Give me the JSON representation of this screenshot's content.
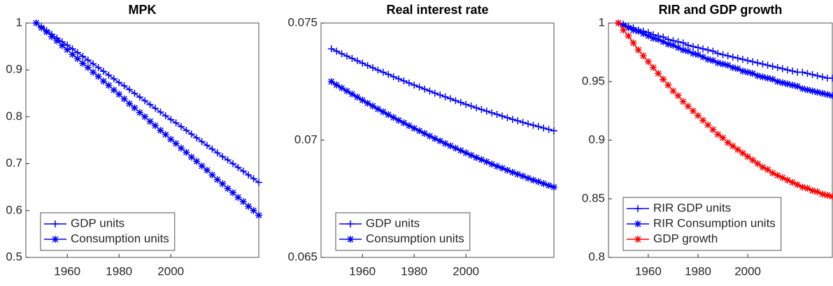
{
  "chart_data": [
    {
      "type": "line",
      "title": "MPK",
      "x": [
        1948,
        1950,
        1952,
        1954,
        1956,
        1958,
        1960,
        1962,
        1964,
        1966,
        1968,
        1970,
        1972,
        1974,
        1976,
        1978,
        1980,
        1982,
        1984,
        1986,
        1988,
        1990,
        1992,
        1994,
        1996,
        1998,
        2000,
        2002,
        2004,
        2006,
        2008,
        2010,
        2012,
        2014,
        2016,
        2018,
        2020,
        2022,
        2024,
        2026,
        2028,
        2030,
        2032,
        2034
      ],
      "xlim": [
        1944,
        2034
      ],
      "xticks": [
        1960,
        1980,
        2000
      ],
      "ylim": [
        0.5,
        1
      ],
      "yticks": [
        0.5,
        0.6,
        0.7,
        0.8,
        0.9,
        1
      ],
      "legend": "southwest",
      "series": [
        {
          "name": "GDP units",
          "color": "#0000ff",
          "marker": "+",
          "values": [
            1.0,
            0.992,
            0.984,
            0.976,
            0.968,
            0.96,
            0.953,
            0.945,
            0.937,
            0.929,
            0.921,
            0.913,
            0.905,
            0.897,
            0.889,
            0.881,
            0.873,
            0.866,
            0.858,
            0.85,
            0.842,
            0.834,
            0.826,
            0.818,
            0.81,
            0.802,
            0.794,
            0.787,
            0.779,
            0.771,
            0.763,
            0.755,
            0.747,
            0.739,
            0.731,
            0.723,
            0.715,
            0.708,
            0.7,
            0.692,
            0.684,
            0.676,
            0.668,
            0.66
          ]
        },
        {
          "name": "Consumption units",
          "color": "#0000ff",
          "marker": "*",
          "values": [
            1.0,
            0.99,
            0.981,
            0.971,
            0.962,
            0.952,
            0.943,
            0.933,
            0.924,
            0.914,
            0.905,
            0.895,
            0.886,
            0.876,
            0.867,
            0.857,
            0.848,
            0.838,
            0.828,
            0.819,
            0.809,
            0.8,
            0.79,
            0.781,
            0.771,
            0.762,
            0.752,
            0.743,
            0.733,
            0.724,
            0.714,
            0.705,
            0.695,
            0.686,
            0.676,
            0.666,
            0.657,
            0.647,
            0.638,
            0.628,
            0.619,
            0.609,
            0.6,
            0.59
          ]
        }
      ]
    },
    {
      "type": "line",
      "title": "Real interest rate",
      "x": [
        1948,
        1950,
        1952,
        1954,
        1956,
        1958,
        1960,
        1962,
        1964,
        1966,
        1968,
        1970,
        1972,
        1974,
        1976,
        1978,
        1980,
        1982,
        1984,
        1986,
        1988,
        1990,
        1992,
        1994,
        1996,
        1998,
        2000,
        2002,
        2004,
        2006,
        2008,
        2010,
        2012,
        2014,
        2016,
        2018,
        2020,
        2022,
        2024,
        2026,
        2028,
        2030,
        2032,
        2034
      ],
      "xlim": [
        1944,
        2034
      ],
      "xticks": [
        1960,
        1980,
        2000
      ],
      "ylim": [
        0.065,
        0.075
      ],
      "yticks": [
        0.065,
        0.07,
        0.075
      ],
      "legend": "southwest",
      "series": [
        {
          "name": "GDP units",
          "color": "#0000ff",
          "marker": "+",
          "values": [
            0.0739,
            0.0738,
            0.07369,
            0.07359,
            0.07349,
            0.07339,
            0.07329,
            0.07319,
            0.07309,
            0.07299,
            0.0729,
            0.07281,
            0.07271,
            0.07262,
            0.07253,
            0.07244,
            0.07235,
            0.07227,
            0.07218,
            0.0721,
            0.07201,
            0.07193,
            0.07185,
            0.07177,
            0.07169,
            0.07161,
            0.07153,
            0.07146,
            0.07138,
            0.07131,
            0.07124,
            0.07117,
            0.0711,
            0.07103,
            0.07096,
            0.07089,
            0.07083,
            0.07076,
            0.0707,
            0.07064,
            0.07058,
            0.07052,
            0.07046,
            0.0704
          ]
        },
        {
          "name": "Consumption units",
          "color": "#0000ff",
          "marker": "*",
          "values": [
            0.0725,
            0.07236,
            0.07223,
            0.0721,
            0.07197,
            0.07184,
            0.07171,
            0.07158,
            0.07146,
            0.07133,
            0.07121,
            0.07109,
            0.07097,
            0.07085,
            0.07074,
            0.07062,
            0.07051,
            0.0704,
            0.07029,
            0.07018,
            0.07007,
            0.06997,
            0.06986,
            0.06976,
            0.06966,
            0.06956,
            0.06946,
            0.06936,
            0.06926,
            0.06917,
            0.06908,
            0.06898,
            0.06889,
            0.06881,
            0.06872,
            0.06863,
            0.06855,
            0.06847,
            0.06838,
            0.0683,
            0.06823,
            0.06815,
            0.06807,
            0.068
          ]
        }
      ]
    },
    {
      "type": "line",
      "title": "RIR and GDP growth",
      "x": [
        1948,
        1950,
        1952,
        1954,
        1956,
        1958,
        1960,
        1962,
        1964,
        1966,
        1968,
        1970,
        1972,
        1974,
        1976,
        1978,
        1980,
        1982,
        1984,
        1986,
        1988,
        1990,
        1992,
        1994,
        1996,
        1998,
        2000,
        2002,
        2004,
        2006,
        2008,
        2010,
        2012,
        2014,
        2016,
        2018,
        2020,
        2022,
        2024,
        2026,
        2028,
        2030,
        2032,
        2034
      ],
      "xlim": [
        1944,
        2034
      ],
      "xticks": [
        1960,
        1980,
        2000
      ],
      "ylim": [
        0.8,
        1
      ],
      "yticks": [
        0.8,
        0.85,
        0.9,
        0.95,
        1
      ],
      "legend": "southwest",
      "series": [
        {
          "name": "RIR GDP units",
          "color": "#0000ff",
          "marker": "+",
          "values": [
            1.0,
            0.999,
            0.997,
            0.996,
            0.994,
            0.993,
            0.992,
            0.99,
            0.989,
            0.988,
            0.986,
            0.985,
            0.984,
            0.983,
            0.981,
            0.98,
            0.979,
            0.978,
            0.977,
            0.976,
            0.974,
            0.973,
            0.972,
            0.971,
            0.97,
            0.969,
            0.968,
            0.967,
            0.966,
            0.965,
            0.964,
            0.963,
            0.962,
            0.961,
            0.96,
            0.959,
            0.958,
            0.958,
            0.957,
            0.956,
            0.955,
            0.954,
            0.953,
            0.953
          ]
        },
        {
          "name": "RIR Consumption units",
          "color": "#0000ff",
          "marker": "*",
          "values": [
            1.0,
            0.998,
            0.996,
            0.994,
            0.993,
            0.991,
            0.989,
            0.987,
            0.986,
            0.984,
            0.982,
            0.981,
            0.979,
            0.977,
            0.976,
            0.974,
            0.973,
            0.971,
            0.969,
            0.968,
            0.966,
            0.965,
            0.964,
            0.962,
            0.961,
            0.959,
            0.958,
            0.957,
            0.955,
            0.954,
            0.953,
            0.952,
            0.95,
            0.949,
            0.948,
            0.947,
            0.946,
            0.944,
            0.943,
            0.942,
            0.941,
            0.94,
            0.939,
            0.938
          ]
        },
        {
          "name": "GDP growth",
          "color": "#ff0000",
          "marker": "*",
          "values": [
            1.0,
            0.994,
            0.989,
            0.983,
            0.977,
            0.972,
            0.967,
            0.962,
            0.957,
            0.952,
            0.947,
            0.942,
            0.938,
            0.933,
            0.929,
            0.925,
            0.921,
            0.917,
            0.913,
            0.909,
            0.905,
            0.902,
            0.898,
            0.895,
            0.892,
            0.889,
            0.886,
            0.883,
            0.88,
            0.877,
            0.875,
            0.872,
            0.87,
            0.868,
            0.866,
            0.864,
            0.862,
            0.86,
            0.859,
            0.857,
            0.856,
            0.854,
            0.853,
            0.852
          ]
        }
      ]
    }
  ]
}
